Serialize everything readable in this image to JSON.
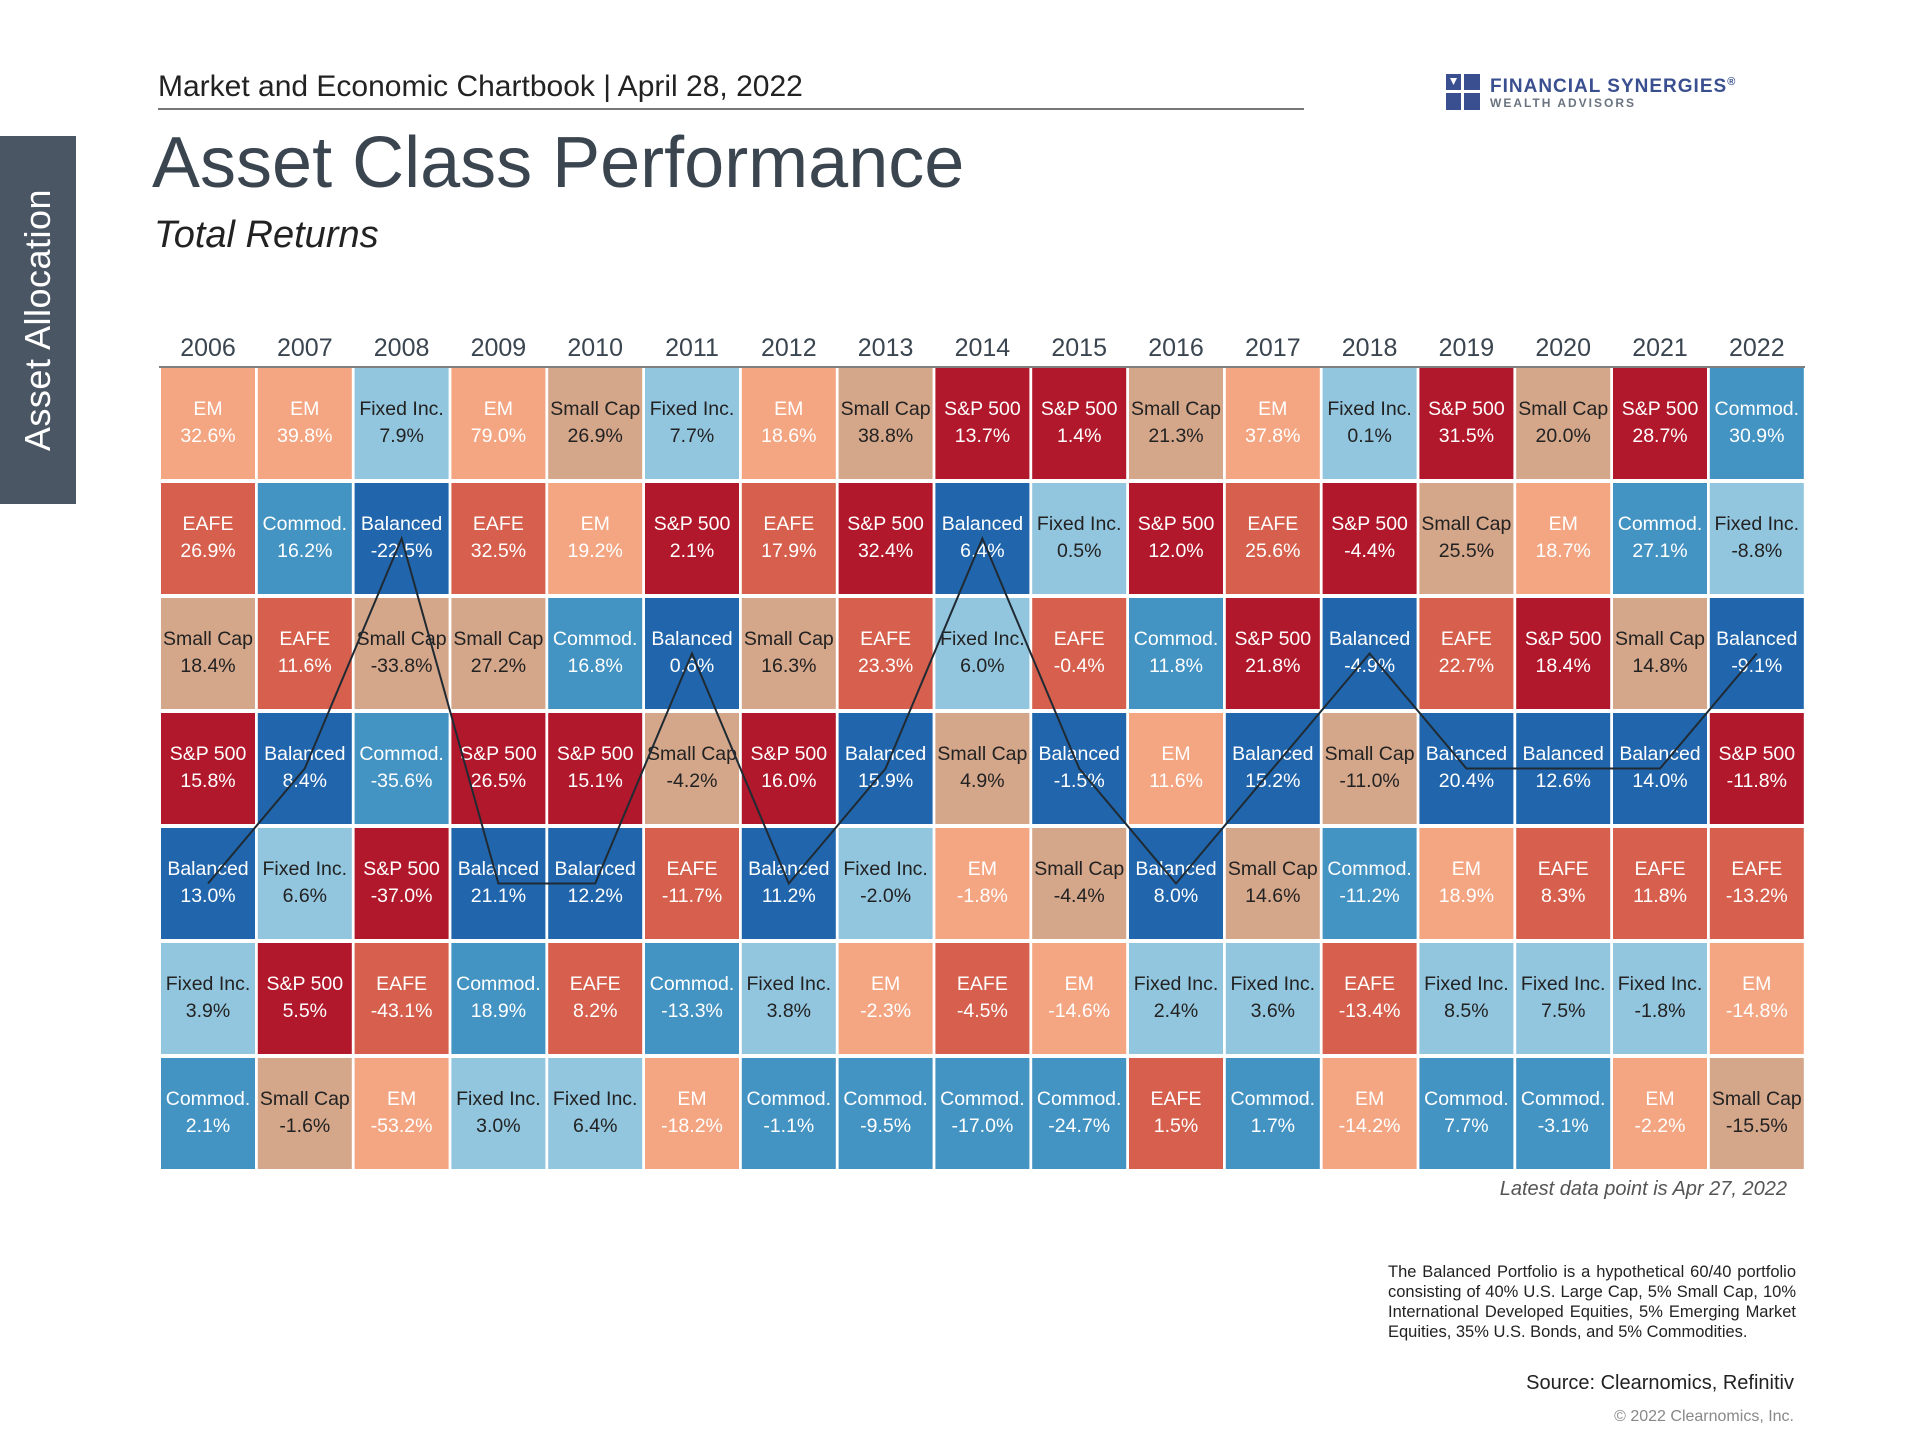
{
  "header": {
    "chartbook": "Market and Economic Chartbook | April 28, 2022",
    "side_tab": "Asset Allocation",
    "title": "Asset Class Performance",
    "subtitle": "Total Returns"
  },
  "logo": {
    "name": "FINANCIAL SYNERGIES",
    "registered": "®",
    "tagline": "WEALTH ADVISORS"
  },
  "colors": {
    "EM": "#f4a582",
    "EAFE": "#d6604d",
    "Small Cap": "#d4a68a",
    "S&P 500": "#b2182b",
    "Balanced": "#2166ac",
    "Commod.": "#4393c3",
    "Fixed Inc.": "#92c5de",
    "line": "#1f2a33"
  },
  "chart_data": {
    "type": "table",
    "title": "Asset Class Performance",
    "subtitle": "Total Returns",
    "years": [
      "2006",
      "2007",
      "2008",
      "2009",
      "2010",
      "2011",
      "2012",
      "2013",
      "2014",
      "2015",
      "2016",
      "2017",
      "2018",
      "2019",
      "2020",
      "2021",
      "2022"
    ],
    "columns": [
      [
        [
          "EM",
          "32.6%"
        ],
        [
          "EAFE",
          "26.9%"
        ],
        [
          "Small Cap",
          "18.4%"
        ],
        [
          "S&P 500",
          "15.8%"
        ],
        [
          "Balanced",
          "13.0%"
        ],
        [
          "Fixed Inc.",
          "3.9%"
        ],
        [
          "Commod.",
          "2.1%"
        ]
      ],
      [
        [
          "EM",
          "39.8%"
        ],
        [
          "Commod.",
          "16.2%"
        ],
        [
          "EAFE",
          "11.6%"
        ],
        [
          "Balanced",
          "8.4%"
        ],
        [
          "Fixed Inc.",
          "6.6%"
        ],
        [
          "S&P 500",
          "5.5%"
        ],
        [
          "Small Cap",
          "-1.6%"
        ]
      ],
      [
        [
          "Fixed Inc.",
          "7.9%"
        ],
        [
          "Balanced",
          "-22.5%"
        ],
        [
          "Small Cap",
          "-33.8%"
        ],
        [
          "Commod.",
          "-35.6%"
        ],
        [
          "S&P 500",
          "-37.0%"
        ],
        [
          "EAFE",
          "-43.1%"
        ],
        [
          "EM",
          "-53.2%"
        ]
      ],
      [
        [
          "EM",
          "79.0%"
        ],
        [
          "EAFE",
          "32.5%"
        ],
        [
          "Small Cap",
          "27.2%"
        ],
        [
          "S&P 500",
          "26.5%"
        ],
        [
          "Balanced",
          "21.1%"
        ],
        [
          "Commod.",
          "18.9%"
        ],
        [
          "Fixed Inc.",
          "3.0%"
        ]
      ],
      [
        [
          "Small Cap",
          "26.9%"
        ],
        [
          "EM",
          "19.2%"
        ],
        [
          "Commod.",
          "16.8%"
        ],
        [
          "S&P 500",
          "15.1%"
        ],
        [
          "Balanced",
          "12.2%"
        ],
        [
          "EAFE",
          "8.2%"
        ],
        [
          "Fixed Inc.",
          "6.4%"
        ]
      ],
      [
        [
          "Fixed Inc.",
          "7.7%"
        ],
        [
          "S&P 500",
          "2.1%"
        ],
        [
          "Balanced",
          "0.6%"
        ],
        [
          "Small Cap",
          "-4.2%"
        ],
        [
          "EAFE",
          "-11.7%"
        ],
        [
          "Commod.",
          "-13.3%"
        ],
        [
          "EM",
          "-18.2%"
        ]
      ],
      [
        [
          "EM",
          "18.6%"
        ],
        [
          "EAFE",
          "17.9%"
        ],
        [
          "Small Cap",
          "16.3%"
        ],
        [
          "S&P 500",
          "16.0%"
        ],
        [
          "Balanced",
          "11.2%"
        ],
        [
          "Fixed Inc.",
          "3.8%"
        ],
        [
          "Commod.",
          "-1.1%"
        ]
      ],
      [
        [
          "Small Cap",
          "38.8%"
        ],
        [
          "S&P 500",
          "32.4%"
        ],
        [
          "EAFE",
          "23.3%"
        ],
        [
          "Balanced",
          "15.9%"
        ],
        [
          "Fixed Inc.",
          "-2.0%"
        ],
        [
          "EM",
          "-2.3%"
        ],
        [
          "Commod.",
          "-9.5%"
        ]
      ],
      [
        [
          "S&P 500",
          "13.7%"
        ],
        [
          "Balanced",
          "6.4%"
        ],
        [
          "Fixed Inc.",
          "6.0%"
        ],
        [
          "Small Cap",
          "4.9%"
        ],
        [
          "EM",
          "-1.8%"
        ],
        [
          "EAFE",
          "-4.5%"
        ],
        [
          "Commod.",
          "-17.0%"
        ]
      ],
      [
        [
          "S&P 500",
          "1.4%"
        ],
        [
          "Fixed Inc.",
          "0.5%"
        ],
        [
          "EAFE",
          "-0.4%"
        ],
        [
          "Balanced",
          "-1.5%"
        ],
        [
          "Small Cap",
          "-4.4%"
        ],
        [
          "EM",
          "-14.6%"
        ],
        [
          "Commod.",
          "-24.7%"
        ]
      ],
      [
        [
          "Small Cap",
          "21.3%"
        ],
        [
          "S&P 500",
          "12.0%"
        ],
        [
          "Commod.",
          "11.8%"
        ],
        [
          "EM",
          "11.6%"
        ],
        [
          "Balanced",
          "8.0%"
        ],
        [
          "Fixed Inc.",
          "2.4%"
        ],
        [
          "EAFE",
          "1.5%"
        ]
      ],
      [
        [
          "EM",
          "37.8%"
        ],
        [
          "EAFE",
          "25.6%"
        ],
        [
          "S&P 500",
          "21.8%"
        ],
        [
          "Balanced",
          "15.2%"
        ],
        [
          "Small Cap",
          "14.6%"
        ],
        [
          "Fixed Inc.",
          "3.6%"
        ],
        [
          "Commod.",
          "1.7%"
        ]
      ],
      [
        [
          "Fixed Inc.",
          "0.1%"
        ],
        [
          "S&P 500",
          "-4.4%"
        ],
        [
          "Balanced",
          "-4.9%"
        ],
        [
          "Small Cap",
          "-11.0%"
        ],
        [
          "Commod.",
          "-11.2%"
        ],
        [
          "EAFE",
          "-13.4%"
        ],
        [
          "EM",
          "-14.2%"
        ]
      ],
      [
        [
          "S&P 500",
          "31.5%"
        ],
        [
          "Small Cap",
          "25.5%"
        ],
        [
          "EAFE",
          "22.7%"
        ],
        [
          "Balanced",
          "20.4%"
        ],
        [
          "EM",
          "18.9%"
        ],
        [
          "Fixed Inc.",
          "8.5%"
        ],
        [
          "Commod.",
          "7.7%"
        ]
      ],
      [
        [
          "Small Cap",
          "20.0%"
        ],
        [
          "EM",
          "18.7%"
        ],
        [
          "S&P 500",
          "18.4%"
        ],
        [
          "Balanced",
          "12.6%"
        ],
        [
          "EAFE",
          "8.3%"
        ],
        [
          "Fixed Inc.",
          "7.5%"
        ],
        [
          "Commod.",
          "-3.1%"
        ]
      ],
      [
        [
          "S&P 500",
          "28.7%"
        ],
        [
          "Commod.",
          "27.1%"
        ],
        [
          "Small Cap",
          "14.8%"
        ],
        [
          "Balanced",
          "14.0%"
        ],
        [
          "EAFE",
          "11.8%"
        ],
        [
          "Fixed Inc.",
          "-1.8%"
        ],
        [
          "EM",
          "-2.2%"
        ]
      ],
      [
        [
          "Commod.",
          "30.9%"
        ],
        [
          "Fixed Inc.",
          "-8.8%"
        ],
        [
          "Balanced",
          "-9.1%"
        ],
        [
          "S&P 500",
          "-11.8%"
        ],
        [
          "EAFE",
          "-13.2%"
        ],
        [
          "EM",
          "-14.8%"
        ],
        [
          "Small Cap",
          "-15.5%"
        ]
      ]
    ],
    "balanced_line": "connects the Balanced cell in each year"
  },
  "notes": {
    "latest": "Latest data point is Apr 27, 2022",
    "balanced": "The Balanced Portfolio is a hypothetical 60/40 portfolio consisting of 40% U.S. Large Cap, 5% Small Cap, 10% International Developed Equities, 5% Emerging Market Equities, 35% U.S. Bonds, and 5% Commodities.",
    "source": "Source: Clearnomics, Refinitiv",
    "copyright": "© 2022 Clearnomics, Inc."
  }
}
